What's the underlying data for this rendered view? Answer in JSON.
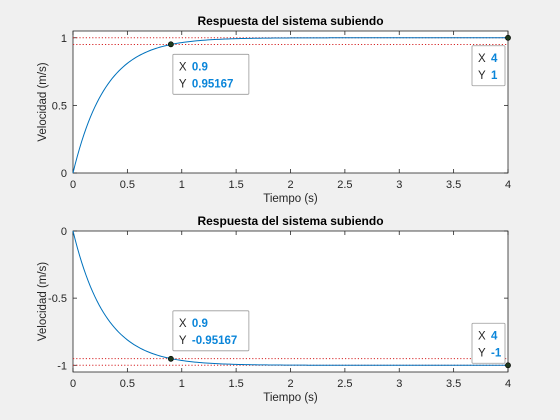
{
  "chart_data": [
    {
      "type": "line",
      "title": "Respuesta del sistema subiendo",
      "xlabel": "Tiempo (s)",
      "ylabel": "Velocidad (m/s)",
      "xlim": [
        0,
        4
      ],
      "ylim": [
        0,
        1.05
      ],
      "xticks": [
        "0",
        "0.5",
        "1",
        "1.5",
        "2",
        "2.5",
        "3",
        "3.5",
        "4"
      ],
      "yticks": [
        "0",
        "0.5",
        "1"
      ],
      "grid": false,
      "series": [
        {
          "color": "#0072bd",
          "function": "y = 1 - exp(-t/0.3)",
          "x_range": [
            0,
            4
          ]
        }
      ],
      "reference_lines": [
        0.95,
        1.0
      ],
      "datatips": [
        {
          "x": 0.9,
          "y": 0.95167,
          "x_label": "X",
          "y_label": "Y",
          "x_text": "0.9",
          "y_text": "0.95167"
        },
        {
          "x": 4,
          "y": 1,
          "x_label": "X",
          "y_label": "Y",
          "x_text": "4",
          "y_text": "1"
        }
      ]
    },
    {
      "type": "line",
      "title": "Respuesta del sistema subiendo",
      "xlabel": "Tiempo (s)",
      "ylabel": "Velocidad (m/s)",
      "xlim": [
        0,
        4
      ],
      "ylim": [
        -1.05,
        0
      ],
      "xticks": [
        "0",
        "0.5",
        "1",
        "1.5",
        "2",
        "2.5",
        "3",
        "3.5",
        "4"
      ],
      "yticks": [
        "0",
        "-0.5",
        "-1"
      ],
      "grid": false,
      "series": [
        {
          "color": "#0072bd",
          "function": "y = -(1 - exp(-t/0.3))",
          "x_range": [
            0,
            4
          ]
        }
      ],
      "reference_lines": [
        -0.95,
        -1.0
      ],
      "datatips": [
        {
          "x": 0.9,
          "y": -0.95167,
          "x_label": "X",
          "y_label": "Y",
          "x_text": "0.9",
          "y_text": "-0.95167"
        },
        {
          "x": 4,
          "y": -1,
          "x_label": "X",
          "y_label": "Y",
          "x_text": "4",
          "y_text": "-1"
        }
      ]
    }
  ]
}
